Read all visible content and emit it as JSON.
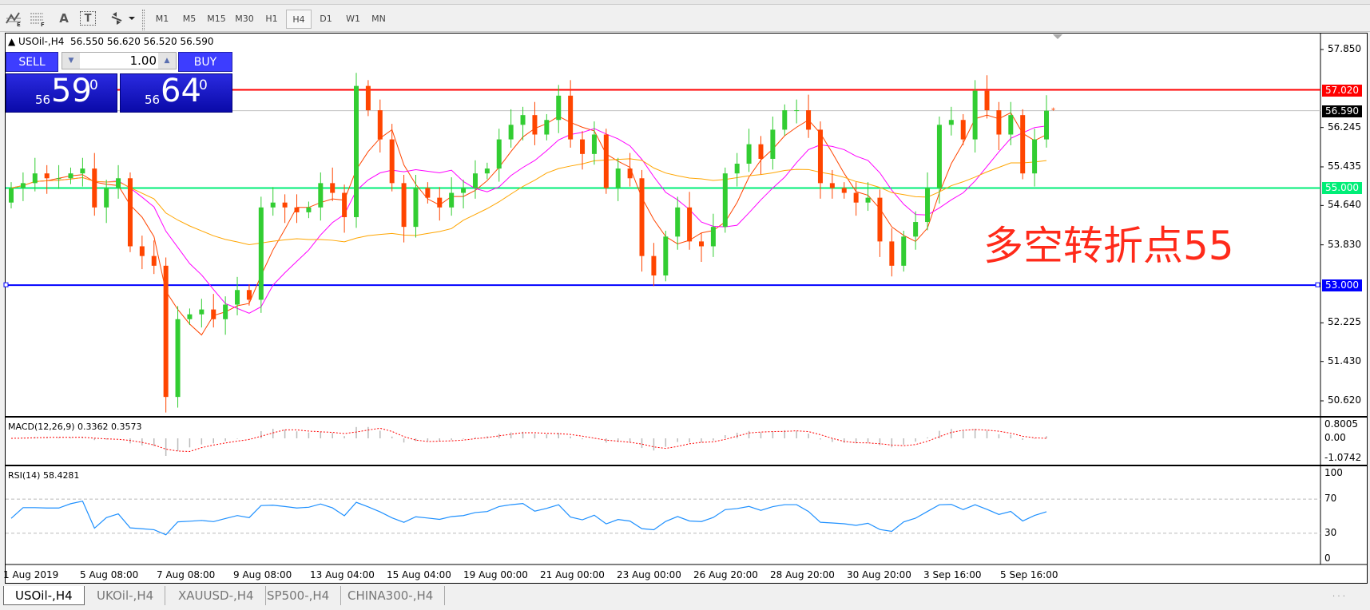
{
  "toolbar": {
    "icons": [
      "elliott-wave-icon",
      "fibonacci-icon",
      "text-icon",
      "text-label-icon",
      "arrows-icon"
    ],
    "text_icon": "A",
    "label_icon": "T",
    "timeframes": [
      "M1",
      "M5",
      "M15",
      "M30",
      "H1",
      "H4",
      "D1",
      "W1",
      "MN"
    ],
    "selected_timeframe": "H4"
  },
  "chart_header": {
    "symbol": "USOil-,H4",
    "open": "56.550",
    "high": "56.620",
    "low": "56.520",
    "close": "56.590"
  },
  "trade_panel": {
    "sell_label": "SELL",
    "buy_label": "BUY",
    "volume": "1.00",
    "sell_small": "56",
    "sell_big": "59",
    "sell_pip": "0",
    "buy_small": "56",
    "buy_big": "64",
    "buy_pip": "0"
  },
  "annotation": {
    "text": "多空转折点55",
    "color": "#ff2a1a"
  },
  "lines": [
    {
      "price": "57.020",
      "color": "#ff0000"
    },
    {
      "price": "56.590",
      "color": "#c0c0c0",
      "tag_color": "#000000"
    },
    {
      "price": "55.000",
      "color": "#00ee77"
    },
    {
      "price": "53.000",
      "color": "#0000ff"
    }
  ],
  "price_axis": [
    "57.850",
    "56.245",
    "55.435",
    "54.640",
    "53.830",
    "52.225",
    "51.430",
    "50.620"
  ],
  "macd": {
    "label": "MACD(12,26,9) 0.3362 0.3573",
    "axis": [
      "0.8005",
      "0.00",
      "-1.0742"
    ]
  },
  "rsi": {
    "label": "RSI(14) 58.4281",
    "axis": [
      "100",
      "70",
      "30",
      "0"
    ],
    "levels": [
      70,
      30
    ]
  },
  "time_axis": [
    "1 Aug 2019",
    "5 Aug 08:00",
    "7 Aug 08:00",
    "9 Aug 08:00",
    "13 Aug 04:00",
    "15 Aug 04:00",
    "19 Aug 00:00",
    "21 Aug 00:00",
    "23 Aug 00:00",
    "26 Aug 20:00",
    "28 Aug 20:00",
    "30 Aug 20:00",
    "3 Sep 16:00",
    "5 Sep 16:00"
  ],
  "tabs": [
    "USOil-,H4",
    "UKOil-,H4",
    "XAUUSD-,H4",
    "SP500-,H4",
    "CHINA300-,H4"
  ],
  "active_tab": "USOil-,H4",
  "colors": {
    "bull": "#32cd32",
    "bear": "#ff4500",
    "rsi": "#1e90ff",
    "macd_signal": "#ff0000",
    "ma_fast": "#ff4500",
    "ma_mid": "#ff00ff",
    "ma_slow": "#ffa500"
  },
  "chart_data": {
    "type": "candlestick",
    "price_range": [
      50.4,
      58.1
    ],
    "closes": [
      55.0,
      55.1,
      55.3,
      55.2,
      55.2,
      55.3,
      55.4,
      54.6,
      55.0,
      55.2,
      53.8,
      53.6,
      53.4,
      50.7,
      52.3,
      52.4,
      52.5,
      52.3,
      52.6,
      52.9,
      52.7,
      54.6,
      54.7,
      54.6,
      54.5,
      54.6,
      55.1,
      54.9,
      54.4,
      57.1,
      56.6,
      56.0,
      55.1,
      54.2,
      55.0,
      54.8,
      54.6,
      54.9,
      55.0,
      55.3,
      55.4,
      56.0,
      56.3,
      56.5,
      56.1,
      56.4,
      56.9,
      56.0,
      55.7,
      56.1,
      55.0,
      55.4,
      55.2,
      53.6,
      53.2,
      54.0,
      54.6,
      53.9,
      53.8,
      54.2,
      55.3,
      55.5,
      55.9,
      55.6,
      56.2,
      56.6,
      56.6,
      56.2,
      55.1,
      55.0,
      54.9,
      54.7,
      54.8,
      53.9,
      53.4,
      54.0,
      54.3,
      55.0,
      56.3,
      56.4,
      56.0,
      57.0,
      56.6,
      56.1,
      56.5,
      55.3,
      56.0,
      56.59
    ]
  }
}
